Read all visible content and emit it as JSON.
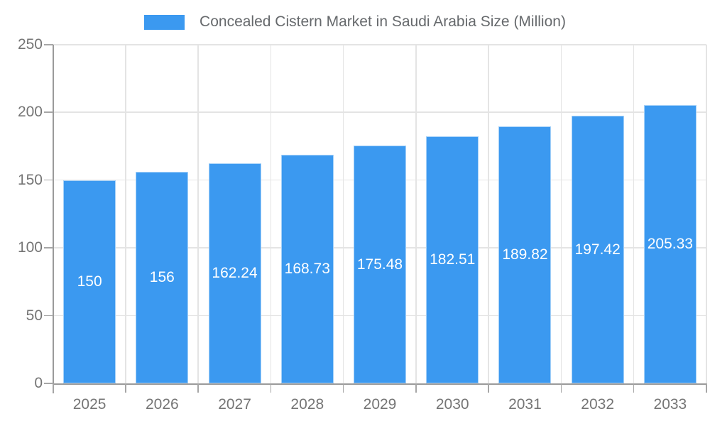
{
  "chart_data": {
    "type": "bar",
    "legend": "Concealed Cistern Market in Saudi Arabia Size (Million)",
    "categories": [
      "2025",
      "2026",
      "2027",
      "2028",
      "2029",
      "2030",
      "2031",
      "2032",
      "2033"
    ],
    "values": [
      150,
      156,
      162.24,
      168.73,
      175.48,
      182.51,
      189.82,
      197.42,
      205.33
    ],
    "value_labels": [
      "150",
      "156",
      "162.24",
      "168.73",
      "175.48",
      "182.51",
      "189.82",
      "197.42",
      "205.33"
    ],
    "ylim": [
      0,
      250
    ],
    "yticks": [
      0,
      50,
      100,
      150,
      200,
      250
    ],
    "xlabel": "",
    "ylabel": "",
    "grid": "on",
    "legend_position": "top-center",
    "colors": {
      "bar": "#3B99F0",
      "grid": "#e4e4e4",
      "axis": "#9a9a9a",
      "tick": "#a6a6a6",
      "axis_text": "#757575",
      "legend_text": "#66696c",
      "value_text": "#ffffff"
    }
  }
}
